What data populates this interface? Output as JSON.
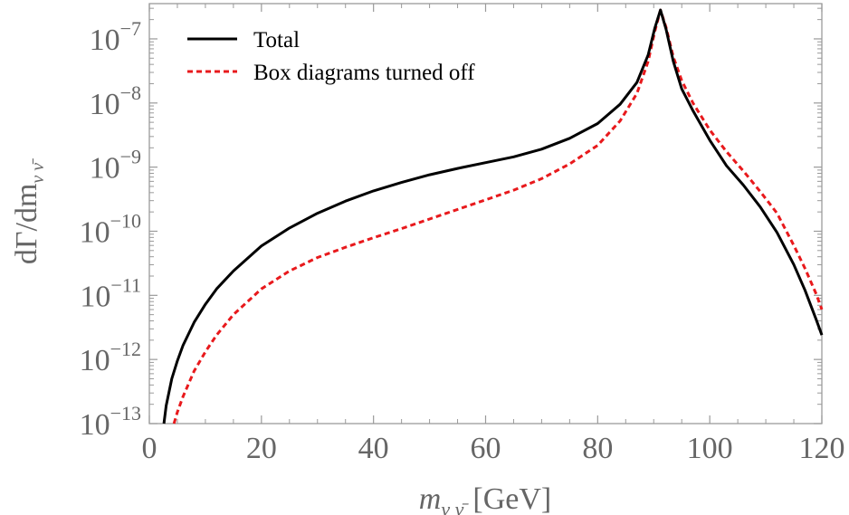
{
  "chart_data": {
    "type": "line",
    "title": "",
    "xlabel": "m",
    "xlabel_sub": "ν ν̄",
    "xlabel_unit": "[GeV]",
    "ylabel": "dΓ/dm",
    "ylabel_sub": "ν ν̄",
    "xlim": [
      0,
      120
    ],
    "ylim_log10": [
      -13,
      -6.45
    ],
    "y_scale": "log",
    "grid": false,
    "legend_position": "top-left",
    "x_ticks": [
      {
        "value": 0,
        "label": "0"
      },
      {
        "value": 20,
        "label": "20"
      },
      {
        "value": 40,
        "label": "40"
      },
      {
        "value": 60,
        "label": "60"
      },
      {
        "value": 80,
        "label": "80"
      },
      {
        "value": 100,
        "label": "100"
      },
      {
        "value": 120,
        "label": "120"
      }
    ],
    "y_ticks": [
      {
        "exp": -7,
        "base": "10",
        "sup": "−7"
      },
      {
        "exp": -8,
        "base": "10",
        "sup": "−8"
      },
      {
        "exp": -9,
        "base": "10",
        "sup": "−9"
      },
      {
        "exp": -10,
        "base": "10",
        "sup": "−10"
      },
      {
        "exp": -11,
        "base": "10",
        "sup": "−11"
      },
      {
        "exp": -12,
        "base": "10",
        "sup": "−12"
      },
      {
        "exp": -13,
        "base": "10",
        "sup": "−13"
      }
    ],
    "series": [
      {
        "name": "Total",
        "color": "#000000",
        "dash": "solid",
        "log10_y": true,
        "points": [
          [
            2.6,
            -13.0
          ],
          [
            3,
            -12.72
          ],
          [
            4,
            -12.3
          ],
          [
            5,
            -12.02
          ],
          [
            6,
            -11.78
          ],
          [
            8,
            -11.42
          ],
          [
            10,
            -11.14
          ],
          [
            12,
            -10.9
          ],
          [
            15,
            -10.62
          ],
          [
            20,
            -10.23
          ],
          [
            25,
            -9.95
          ],
          [
            30,
            -9.72
          ],
          [
            35,
            -9.53
          ],
          [
            40,
            -9.37
          ],
          [
            45,
            -9.24
          ],
          [
            50,
            -9.12
          ],
          [
            55,
            -9.02
          ],
          [
            60,
            -8.93
          ],
          [
            65,
            -8.84
          ],
          [
            70,
            -8.72
          ],
          [
            75,
            -8.55
          ],
          [
            80,
            -8.32
          ],
          [
            84,
            -8.02
          ],
          [
            87,
            -7.68
          ],
          [
            89,
            -7.25
          ],
          [
            90.2,
            -6.83
          ],
          [
            91.2,
            -6.55
          ],
          [
            92.2,
            -6.85
          ],
          [
            93.5,
            -7.35
          ],
          [
            95,
            -7.78
          ],
          [
            97,
            -8.12
          ],
          [
            100,
            -8.58
          ],
          [
            103,
            -8.98
          ],
          [
            106,
            -9.28
          ],
          [
            109,
            -9.62
          ],
          [
            112,
            -10.02
          ],
          [
            115,
            -10.52
          ],
          [
            117,
            -10.92
          ],
          [
            119,
            -11.38
          ],
          [
            120,
            -11.62
          ]
        ]
      },
      {
        "name": "Box diagrams turned off",
        "color": "#e8191c",
        "dash": "dashed",
        "log10_y": true,
        "points": [
          [
            4.4,
            -13.0
          ],
          [
            5,
            -12.82
          ],
          [
            6,
            -12.58
          ],
          [
            8,
            -12.18
          ],
          [
            10,
            -11.88
          ],
          [
            12,
            -11.62
          ],
          [
            15,
            -11.3
          ],
          [
            20,
            -10.9
          ],
          [
            25,
            -10.62
          ],
          [
            30,
            -10.41
          ],
          [
            35,
            -10.25
          ],
          [
            40,
            -10.1
          ],
          [
            45,
            -9.96
          ],
          [
            50,
            -9.81
          ],
          [
            55,
            -9.66
          ],
          [
            60,
            -9.51
          ],
          [
            65,
            -9.36
          ],
          [
            70,
            -9.18
          ],
          [
            75,
            -8.95
          ],
          [
            80,
            -8.66
          ],
          [
            84,
            -8.28
          ],
          [
            87,
            -7.85
          ],
          [
            89,
            -7.35
          ],
          [
            90.2,
            -6.88
          ],
          [
            91.2,
            -6.55
          ],
          [
            92.2,
            -6.82
          ],
          [
            93.5,
            -7.28
          ],
          [
            95,
            -7.65
          ],
          [
            97,
            -8.0
          ],
          [
            100,
            -8.42
          ],
          [
            103,
            -8.76
          ],
          [
            106,
            -9.06
          ],
          [
            109,
            -9.38
          ],
          [
            112,
            -9.72
          ],
          [
            115,
            -10.22
          ],
          [
            117,
            -10.58
          ],
          [
            119,
            -10.98
          ],
          [
            120,
            -11.22
          ]
        ]
      }
    ]
  }
}
